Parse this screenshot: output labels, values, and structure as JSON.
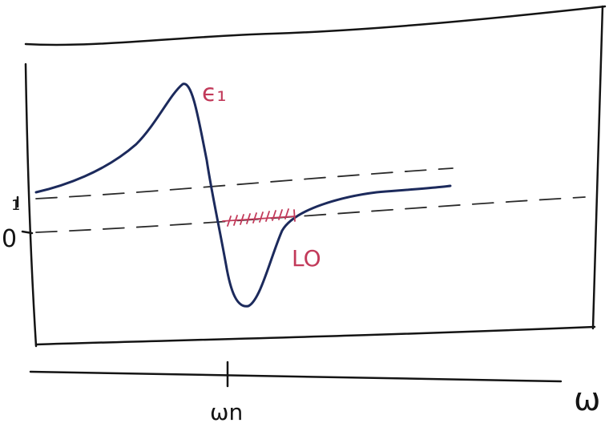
{
  "labels": {
    "epsilon_label": "ϵ₁",
    "lo_label": "LO",
    "zero_label": "0",
    "one_label": "1",
    "omega_n_label": "ωn",
    "omega_axis_label": "ω"
  },
  "colors": {
    "curve": "#1c2a5c",
    "annotation": "#c23a5a",
    "ink": "#141414"
  }
}
